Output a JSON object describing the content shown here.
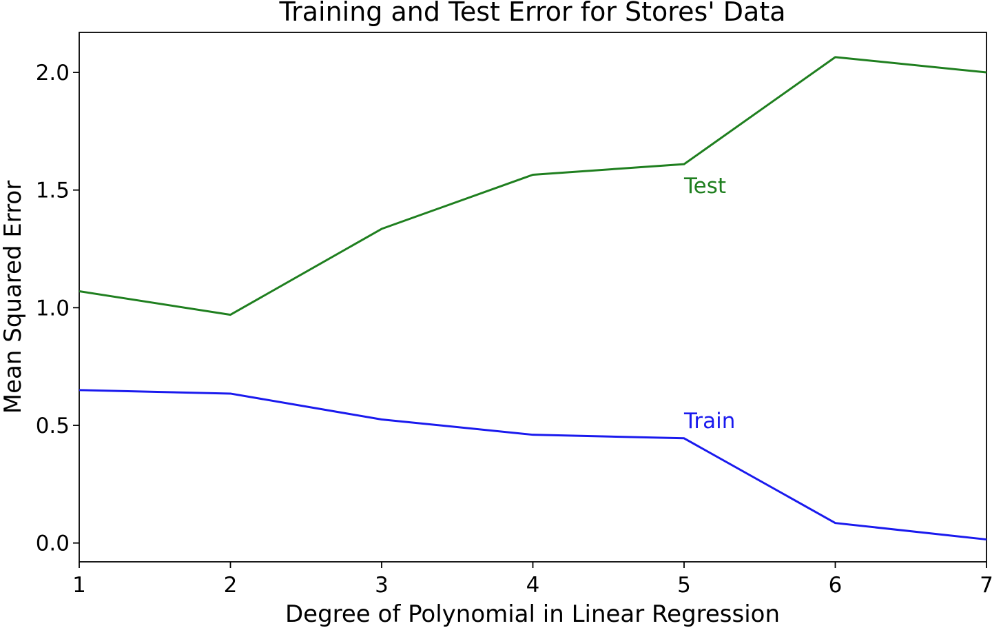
{
  "chart_data": {
    "type": "line",
    "title": "Training and Test Error for Stores' Data",
    "xlabel": "Degree of Polynomial in Linear Regression",
    "ylabel": "Mean Squared Error",
    "xlim": [
      1,
      7
    ],
    "ylim": [
      -0.08,
      2.17
    ],
    "x_ticks": [
      1,
      2,
      3,
      4,
      5,
      6,
      7
    ],
    "x_tick_labels": [
      "1",
      "2",
      "3",
      "4",
      "5",
      "6",
      "7"
    ],
    "y_ticks": [
      0.0,
      0.5,
      1.0,
      1.5,
      2.0
    ],
    "y_tick_labels": [
      "0.0",
      "0.5",
      "1.0",
      "1.5",
      "2.0"
    ],
    "grid": false,
    "legend": "none",
    "x": [
      1,
      2,
      3,
      4,
      5,
      6,
      7
    ],
    "series": [
      {
        "name": "Test",
        "color": "#1f7f1f",
        "values": [
          1.07,
          0.97,
          1.335,
          1.565,
          1.61,
          2.065,
          2.0
        ]
      },
      {
        "name": "Train",
        "color": "#1a1aee",
        "values": [
          0.65,
          0.635,
          0.525,
          0.46,
          0.445,
          0.085,
          0.015
        ]
      }
    ],
    "annotations": [
      {
        "text": "Test",
        "x": 5.0,
        "y": 1.52,
        "color": "#1f7f1f"
      },
      {
        "text": "Train",
        "x": 5.0,
        "y": 0.52,
        "color": "#1a1aee"
      }
    ]
  }
}
